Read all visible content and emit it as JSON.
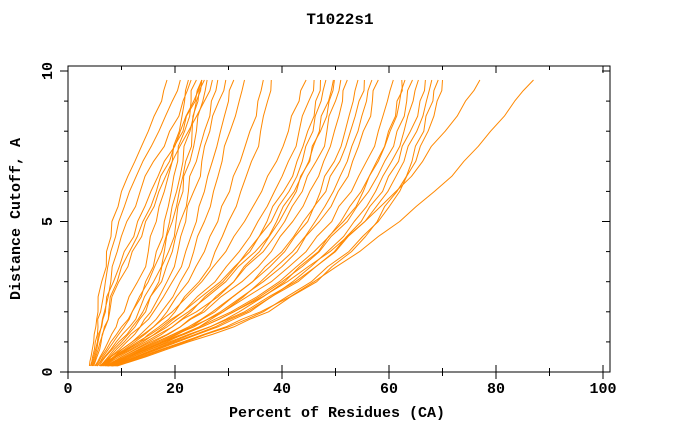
{
  "window": {
    "background": "#ffffff"
  },
  "chart_data": {
    "type": "line",
    "title": "T1022s1",
    "xlabel": "Percent of Residues (CA)",
    "ylabel": "Distance Cutoff, A",
    "xlim": [
      0,
      100
    ],
    "ylim": [
      0,
      10
    ],
    "x_major_ticks": [
      0,
      20,
      40,
      60,
      80,
      100
    ],
    "x_minor_step": 10,
    "y_major_ticks": [
      0,
      5,
      10
    ],
    "y_minor_step": 1,
    "grid": false,
    "legend_position": "none",
    "series_color": "#FF8800",
    "axis_color": "#000000",
    "y_levels": [
      0.2,
      0.5,
      1,
      1.5,
      2,
      3,
      4,
      5,
      6,
      7,
      8,
      9,
      9.7
    ],
    "series": [
      [
        4.0,
        4.3,
        4.8,
        5.2,
        5.6,
        6.3,
        7.2,
        8.2,
        10,
        12.5,
        15,
        17.5,
        18.5
      ],
      [
        4.2,
        4.6,
        5.1,
        5.6,
        6.1,
        7.0,
        8.0,
        9.5,
        11.5,
        14,
        17,
        19.5,
        21
      ],
      [
        4.5,
        5.0,
        5.6,
        6.2,
        6.8,
        8.0,
        9.2,
        11,
        13.5,
        16,
        19,
        21.5,
        23
      ],
      [
        4.3,
        4.8,
        5.5,
        6.3,
        7.0,
        8.5,
        10.5,
        13,
        15.5,
        18,
        21,
        23.5,
        25
      ],
      [
        4.8,
        5.4,
        6.2,
        7.0,
        7.8,
        9.5,
        12,
        14.5,
        17,
        19.5,
        22.5,
        25.5,
        27
      ],
      [
        4.6,
        5.2,
        6.0,
        6.8,
        7.6,
        9.2,
        11.5,
        14,
        16.5,
        19,
        21.5,
        23.8,
        25
      ],
      [
        5.0,
        6.0,
        7.5,
        9.0,
        10.5,
        13,
        15,
        16.5,
        18,
        19.5,
        20.8,
        21.8,
        22.5
      ],
      [
        5.5,
        6.5,
        8.5,
        10.5,
        12,
        14.5,
        16.5,
        18,
        19.3,
        20.5,
        21.8,
        23,
        24
      ],
      [
        5.2,
        6.2,
        8.0,
        10,
        12,
        15,
        17.5,
        19,
        20.3,
        21.5,
        22.8,
        24,
        25
      ],
      [
        6.0,
        7.5,
        10,
        12.5,
        14.5,
        17,
        18.8,
        20.2,
        21.5,
        22.8,
        24,
        25.2,
        26
      ],
      [
        5.4,
        6.8,
        9.0,
        11.5,
        13.2,
        16,
        18,
        19.5,
        20.8,
        22,
        23.2,
        24.3,
        25.5
      ],
      [
        5.8,
        7.0,
        9.5,
        12,
        14,
        17.5,
        19.5,
        21,
        22.5,
        24,
        25.5,
        26.8,
        28
      ],
      [
        6.5,
        8.0,
        11,
        13.5,
        15.5,
        18.5,
        20.5,
        22,
        23.5,
        25,
        26.5,
        28.2,
        29.5
      ],
      [
        6.2,
        7.8,
        10.5,
        13.5,
        16,
        19.5,
        22,
        24,
        25.5,
        27,
        28.5,
        30,
        31
      ],
      [
        6.8,
        8.5,
        12,
        15,
        17.5,
        21,
        23.5,
        25.5,
        27.2,
        28.8,
        30.3,
        32,
        33
      ],
      [
        6.5,
        8.5,
        12.5,
        16,
        18.5,
        22.5,
        25.5,
        28,
        30.2,
        32.2,
        34,
        35.5,
        36.5
      ],
      [
        7.0,
        9.0,
        13.5,
        17,
        20,
        24.5,
        27.5,
        30,
        32.3,
        34.3,
        36,
        37.3,
        38
      ],
      [
        6.0,
        8.0,
        12,
        16,
        19.5,
        25,
        29.5,
        33,
        36.2,
        39,
        41.2,
        43.2,
        44.5
      ],
      [
        6.5,
        9.0,
        14,
        18,
        21.5,
        27.5,
        32,
        35.5,
        38.6,
        41.2,
        43.2,
        45,
        46
      ],
      [
        7.0,
        10,
        15,
        19.5,
        23,
        29,
        33.5,
        37.2,
        40.3,
        42.8,
        44.8,
        46.3,
        47.2
      ],
      [
        6.2,
        8.5,
        13,
        17.5,
        21.5,
        28.5,
        34,
        38,
        41.3,
        43.8,
        45.8,
        47.3,
        48.2
      ],
      [
        7.5,
        10.5,
        16,
        21,
        25,
        31,
        35.8,
        39.5,
        42.7,
        45.2,
        47.2,
        48.8,
        49.8
      ],
      [
        6.4,
        8.8,
        13.5,
        18.5,
        22.5,
        29.5,
        35,
        39,
        42.3,
        45,
        47,
        48.7,
        49.6
      ],
      [
        6.8,
        9.5,
        14.5,
        19.5,
        24,
        31,
        36.5,
        40.5,
        43.8,
        46.4,
        48.4,
        50,
        51
      ],
      [
        7.2,
        10,
        15.5,
        21,
        25.5,
        32.5,
        38,
        42,
        45.2,
        47.8,
        49.8,
        51.3,
        52.2
      ],
      [
        8.0,
        11.5,
        17.5,
        23,
        27.5,
        34.5,
        40,
        44,
        47.2,
        49.8,
        51.8,
        53.3,
        54.2
      ],
      [
        7.4,
        10.5,
        16.5,
        22.5,
        27,
        34.5,
        40.5,
        44.8,
        48.2,
        50.8,
        52.8,
        54.4,
        55.4
      ],
      [
        8.2,
        12,
        18.5,
        24.5,
        29,
        36,
        42,
        46.2,
        49.6,
        52.2,
        54.2,
        55.8,
        56.8
      ],
      [
        7.8,
        11,
        17,
        23.5,
        28.5,
        36.5,
        42.8,
        47,
        50.5,
        53.2,
        55.2,
        56.9,
        58
      ],
      [
        7.0,
        10.5,
        16.5,
        23,
        29,
        38,
        44.5,
        49.3,
        53,
        55.8,
        58,
        59.7,
        60.8
      ],
      [
        7.3,
        11,
        17.5,
        24.5,
        30.5,
        39.5,
        46,
        51,
        54.8,
        57.7,
        59.9,
        61.5,
        62.4
      ],
      [
        8.5,
        12.5,
        19.5,
        26.5,
        32,
        40.5,
        46.8,
        51.5,
        55.2,
        58,
        60.2,
        62,
        63
      ],
      [
        7.6,
        11.5,
        18,
        25,
        31,
        40,
        47,
        52.2,
        56.2,
        59.2,
        61.5,
        63.3,
        64.4
      ],
      [
        8.3,
        12.8,
        20,
        27.5,
        33.5,
        42,
        48.5,
        53.5,
        57.5,
        60.5,
        62.8,
        64.5,
        65.5
      ],
      [
        8.8,
        13,
        20.5,
        28,
        34,
        43,
        49.8,
        54.8,
        58.8,
        61.8,
        64,
        65.8,
        66.8
      ],
      [
        8.0,
        12,
        19,
        26.5,
        33,
        42.5,
        50,
        55.5,
        59.8,
        62.8,
        65.2,
        67,
        68
      ],
      [
        9.0,
        14,
        22,
        30,
        36.5,
        45.5,
        52.5,
        58,
        62,
        65,
        67.3,
        69,
        70
      ],
      [
        9.2,
        14.5,
        22.5,
        31,
        37.5,
        46.5,
        53,
        57.8,
        61.5,
        64.3,
        66.5,
        68.2,
        69.2
      ],
      [
        7.5,
        11,
        18,
        25,
        31,
        41,
        49,
        55.5,
        61.3,
        66.3,
        70.5,
        74.3,
        77
      ],
      [
        8.5,
        13.5,
        21.5,
        29.5,
        36,
        46,
        54.5,
        62,
        68.5,
        74,
        79,
        83.5,
        87
      ]
    ]
  }
}
